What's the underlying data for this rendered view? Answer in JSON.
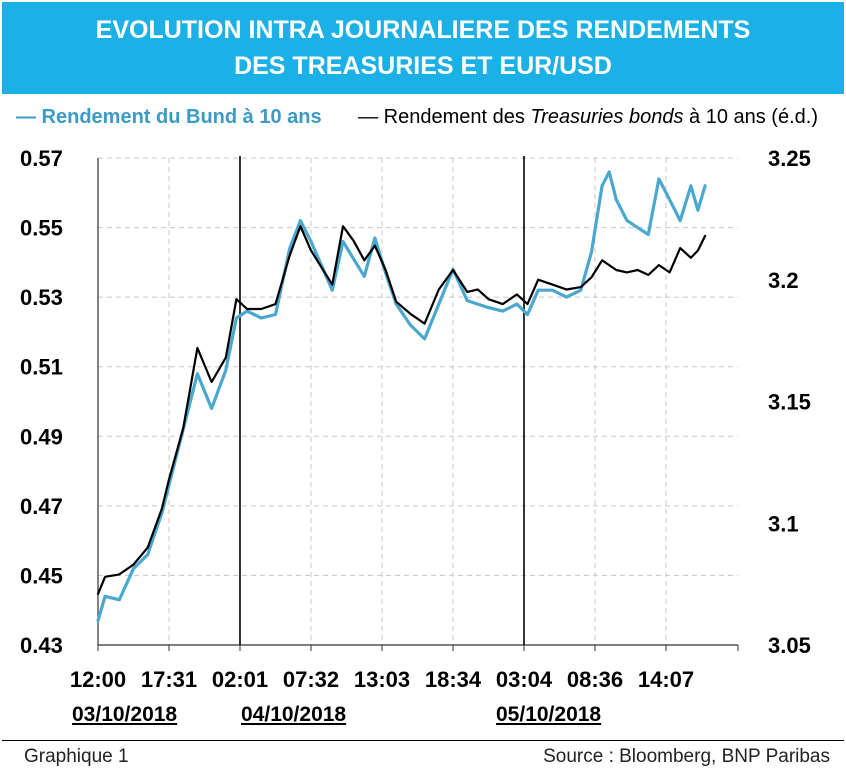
{
  "title": {
    "line1": "EVOLUTION INTRA JOURNALIERE DES RENDEMENTS",
    "line2": "DES TREASURIES ET EUR/USD"
  },
  "legend": {
    "bund_label": "— Rendement du Bund à 10 ans",
    "tsy_prefix": "— Rendement des ",
    "tsy_italic": "Treasuries bonds",
    "tsy_suffix": " à 10 ans (é.d.)"
  },
  "dates": [
    "03/10/2018",
    "04/10/2018",
    "05/10/2018"
  ],
  "footer": {
    "left": "Graphique 1",
    "right": "Source : Bloomberg, BNP Paribas"
  },
  "colors": {
    "title_bg": "#1bb0e6",
    "bund": "#4aa8cf",
    "treasury": "#000000"
  },
  "chart_data": {
    "type": "line",
    "title": "EVOLUTION INTRA JOURNALIERE DES RENDEMENTS DES TREASURIES ET EUR/USD",
    "x_tick_labels": [
      "12:00",
      "17:31",
      "02:01",
      "07:32",
      "13:03",
      "18:34",
      "03:04",
      "08:36",
      "14:07"
    ],
    "left_axis": {
      "ylim": [
        0.43,
        0.57
      ],
      "ticks": [
        "0.57",
        "0.55",
        "0.53",
        "0.51",
        "0.49",
        "0.47",
        "0.45",
        "0.43"
      ]
    },
    "right_axis": {
      "ylim": [
        3.05,
        3.25
      ],
      "ticks": [
        "3.25",
        "3.2",
        "3.15",
        "3.1",
        "3.05"
      ]
    },
    "grid": true,
    "day_separators_at_tick": [
      2,
      6
    ],
    "series": [
      {
        "name": "Rendement du Bund à 10 ans",
        "axis": "left",
        "color": "#4aa8cf",
        "x": [
          0,
          0.1,
          0.3,
          0.5,
          0.7,
          0.9,
          1.0,
          1.2,
          1.4,
          1.6,
          1.8,
          1.95,
          2.1,
          2.3,
          2.5,
          2.7,
          2.85,
          3.0,
          3.15,
          3.3,
          3.45,
          3.6,
          3.75,
          3.9,
          4.05,
          4.2,
          4.4,
          4.6,
          4.8,
          5.0,
          5.2,
          5.35,
          5.5,
          5.7,
          5.9,
          6.05,
          6.2,
          6.4,
          6.6,
          6.8,
          6.95,
          7.1,
          7.2,
          7.3,
          7.45,
          7.6,
          7.75,
          7.9,
          8.05,
          8.2,
          8.35,
          8.45,
          8.55
        ],
        "values": [
          0.437,
          0.444,
          0.443,
          0.452,
          0.456,
          0.468,
          0.476,
          0.492,
          0.508,
          0.498,
          0.509,
          0.524,
          0.526,
          0.524,
          0.525,
          0.544,
          0.552,
          0.546,
          0.539,
          0.532,
          0.546,
          0.541,
          0.536,
          0.547,
          0.537,
          0.528,
          0.522,
          0.518,
          0.528,
          0.538,
          0.529,
          0.528,
          0.527,
          0.526,
          0.528,
          0.525,
          0.532,
          0.532,
          0.53,
          0.532,
          0.543,
          0.562,
          0.566,
          0.558,
          0.552,
          0.55,
          0.548,
          0.564,
          0.558,
          0.552,
          0.562,
          0.555,
          0.562
        ]
      },
      {
        "name": "Rendement des Treasuries bonds à 10 ans (é.d.)",
        "axis": "right",
        "color": "#000000",
        "x": [
          0,
          0.1,
          0.3,
          0.5,
          0.7,
          0.9,
          1.0,
          1.2,
          1.4,
          1.6,
          1.8,
          1.95,
          2.1,
          2.3,
          2.5,
          2.7,
          2.85,
          3.0,
          3.15,
          3.3,
          3.45,
          3.6,
          3.75,
          3.9,
          4.05,
          4.2,
          4.4,
          4.6,
          4.8,
          5.0,
          5.2,
          5.35,
          5.5,
          5.7,
          5.9,
          6.05,
          6.2,
          6.4,
          6.6,
          6.8,
          6.95,
          7.1,
          7.2,
          7.3,
          7.45,
          7.6,
          7.75,
          7.9,
          8.05,
          8.2,
          8.35,
          8.45,
          8.55
        ],
        "values": [
          3.071,
          3.078,
          3.079,
          3.083,
          3.09,
          3.106,
          3.118,
          3.139,
          3.172,
          3.158,
          3.168,
          3.192,
          3.188,
          3.188,
          3.19,
          3.21,
          3.222,
          3.212,
          3.205,
          3.198,
          3.222,
          3.216,
          3.208,
          3.214,
          3.204,
          3.191,
          3.186,
          3.182,
          3.196,
          3.204,
          3.195,
          3.196,
          3.192,
          3.19,
          3.194,
          3.19,
          3.2,
          3.198,
          3.196,
          3.197,
          3.201,
          3.208,
          3.206,
          3.204,
          3.203,
          3.204,
          3.202,
          3.206,
          3.203,
          3.213,
          3.209,
          3.212,
          3.218
        ]
      }
    ]
  }
}
